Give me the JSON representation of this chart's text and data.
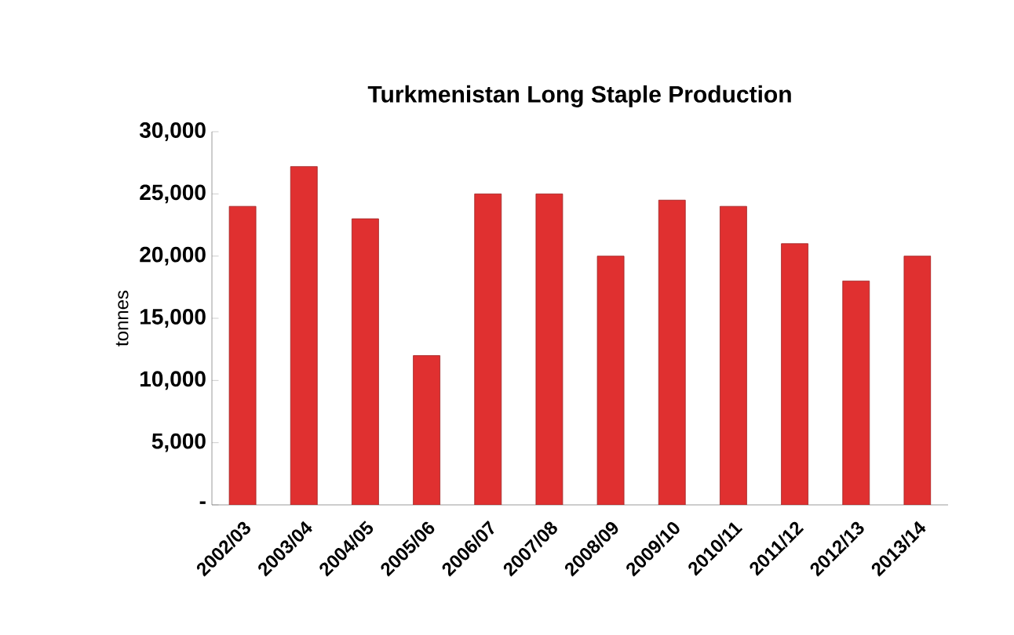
{
  "chart_data": {
    "type": "bar",
    "title": "Turkmenistan Long Staple Production",
    "ylabel": "tonnes",
    "categories": [
      "2002/03",
      "2003/04",
      "2004/05",
      "2005/06",
      "2006/07",
      "2007/08",
      "2008/09",
      "2009/10",
      "2010/11",
      "2011/12",
      "2012/13",
      "2013/14"
    ],
    "values": [
      24000,
      27200,
      23000,
      12000,
      25000,
      25000,
      20000,
      24500,
      24000,
      21000,
      18000,
      20000
    ],
    "color": "#e03030",
    "ylim": [
      0,
      30000
    ],
    "yticks": [
      {
        "value": 0,
        "label": "-"
      },
      {
        "value": 5000,
        "label": "5,000"
      },
      {
        "value": 10000,
        "label": "10,000"
      },
      {
        "value": 15000,
        "label": "15,000"
      },
      {
        "value": 20000,
        "label": "20,000"
      },
      {
        "value": 25000,
        "label": "25,000"
      },
      {
        "value": 30000,
        "label": "30,000"
      }
    ],
    "grid": false
  }
}
